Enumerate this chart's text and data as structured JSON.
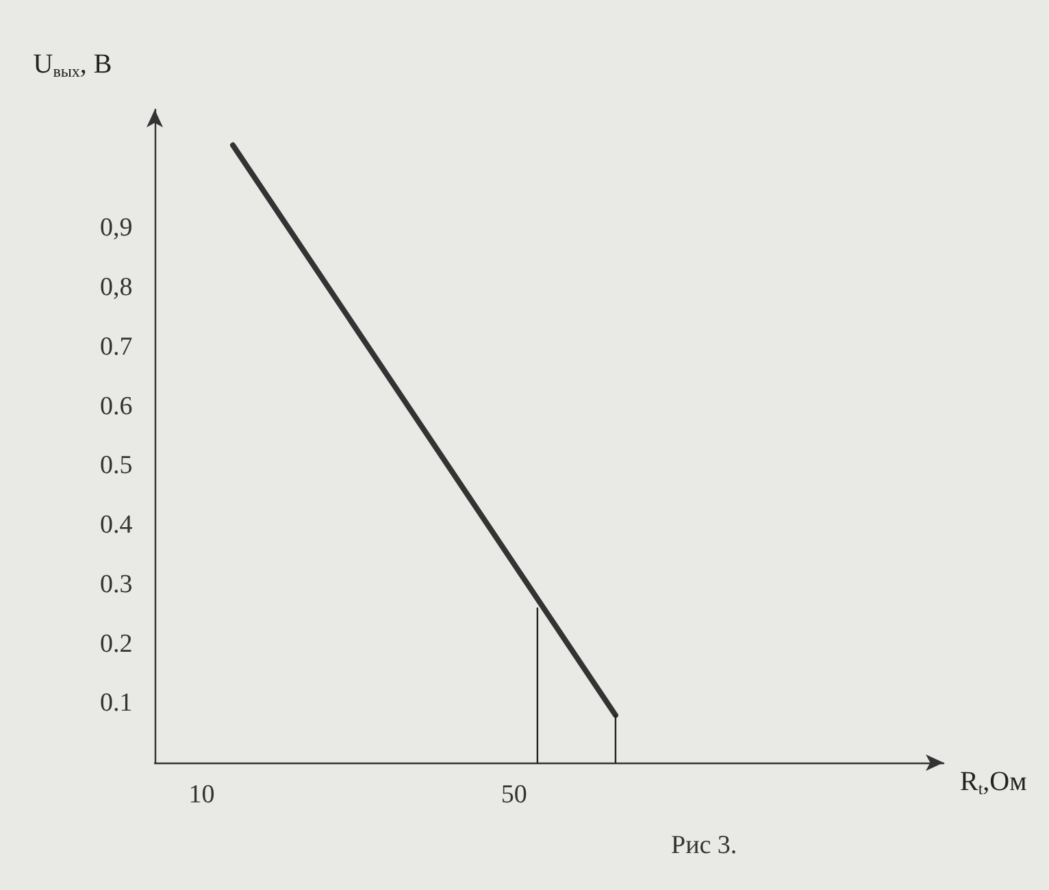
{
  "chart_data": {
    "type": "line",
    "xlabel": "R$_{t}$,Ом",
    "ylabel": "U$_{вых}$, В",
    "annotations": [
      "Рис 3."
    ],
    "xlim": [
      4,
      105
    ],
    "xticks": [
      10,
      50
    ],
    "ylim": [
      0,
      1.1
    ],
    "yticks": [
      0.1,
      0.2,
      0.3,
      0.4,
      0.5,
      0.6,
      0.7,
      {
        "value": 0.8,
        "label": "0,8"
      },
      {
        "value": 0.9,
        "label": "0,9"
      }
    ],
    "grid": false,
    "marker": "none",
    "line_style": "solid",
    "series": [
      {
        "color": "#333333",
        "x": [
          14,
          63
        ],
        "values": [
          1.04,
          0.08
        ]
      },
      {
        "color": "#222222",
        "x": [
          53,
          53
        ],
        "values": [
          0,
          0.26
        ]
      },
      {
        "color": "#222222",
        "x": [
          63,
          63
        ],
        "values": [
          0,
          0.08
        ]
      }
    ]
  }
}
